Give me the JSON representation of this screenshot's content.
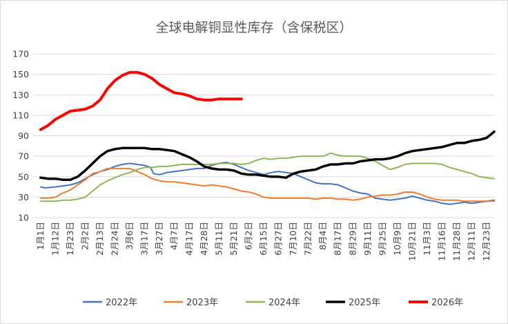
{
  "chart_data": {
    "type": "line",
    "title": "全球电解铜显性库存（含保税区）",
    "xlabel": "",
    "ylabel": "",
    "y_ticks": [
      10,
      30,
      50,
      70,
      90,
      110,
      130,
      150,
      170
    ],
    "ylim": [
      10,
      170
    ],
    "grid": "horizontal",
    "legend_position": "bottom",
    "x_ticks": [
      "1月1日",
      "1月12日",
      "1月23日",
      "2月2日",
      "2月13日",
      "2月24日",
      "3月6日",
      "3月17日",
      "3月27日",
      "4月7日",
      "4月17日",
      "4月28日",
      "5月11日",
      "5月21日",
      "6月2日",
      "6月15日",
      "6月27日",
      "7月10日",
      "7月22日",
      "8月4日",
      "8月17日",
      "8月29日",
      "9月11日",
      "9月25日",
      "10月9日",
      "10月21日",
      "11月3日",
      "11月16日",
      "11月28日",
      "12月11日",
      "12月23日"
    ],
    "series": [
      {
        "name": "2022年",
        "color": "#4472c4",
        "width": 2,
        "points": [
          [
            0,
            40
          ],
          [
            0.3,
            39
          ],
          [
            1,
            40
          ],
          [
            2,
            42
          ],
          [
            2.5,
            44
          ],
          [
            3,
            48
          ],
          [
            3.5,
            52
          ],
          [
            4,
            55
          ],
          [
            4.5,
            57
          ],
          [
            5,
            60
          ],
          [
            5.5,
            62
          ],
          [
            6,
            63
          ],
          [
            6.5,
            62
          ],
          [
            7,
            61
          ],
          [
            7.4,
            59
          ],
          [
            7.6,
            53
          ],
          [
            8,
            52
          ],
          [
            8.5,
            54
          ],
          [
            9,
            55
          ],
          [
            9.5,
            56
          ],
          [
            10,
            57
          ],
          [
            10.5,
            58
          ],
          [
            11,
            58
          ],
          [
            11.5,
            61
          ],
          [
            12,
            63
          ],
          [
            12.5,
            64
          ],
          [
            13,
            62
          ],
          [
            13.5,
            59
          ],
          [
            14,
            56
          ],
          [
            14.5,
            54
          ],
          [
            15,
            52
          ],
          [
            15.5,
            54
          ],
          [
            16,
            55
          ],
          [
            16.5,
            54
          ],
          [
            17,
            53
          ],
          [
            17.5,
            50
          ],
          [
            18,
            47
          ],
          [
            18.5,
            44
          ],
          [
            19,
            43
          ],
          [
            19.5,
            43
          ],
          [
            20,
            42
          ],
          [
            20.5,
            39
          ],
          [
            21,
            36
          ],
          [
            21.5,
            34
          ],
          [
            22,
            33
          ],
          [
            22.5,
            29
          ],
          [
            23,
            28
          ],
          [
            23.5,
            27
          ],
          [
            24,
            28
          ],
          [
            24.5,
            29
          ],
          [
            25,
            31
          ],
          [
            25.5,
            29
          ],
          [
            26,
            27
          ],
          [
            26.5,
            26
          ],
          [
            27,
            24
          ],
          [
            27.5,
            23
          ],
          [
            28,
            24
          ],
          [
            28.5,
            25
          ],
          [
            29,
            24
          ],
          [
            29.5,
            25
          ],
          [
            30,
            26
          ],
          [
            30.5,
            27
          ]
        ]
      },
      {
        "name": "2023年",
        "color": "#ed7d31",
        "width": 2,
        "points": [
          [
            0,
            29
          ],
          [
            0.5,
            29
          ],
          [
            1,
            30
          ],
          [
            1.5,
            34
          ],
          [
            2,
            37
          ],
          [
            2.5,
            42
          ],
          [
            3,
            47
          ],
          [
            3.5,
            53
          ],
          [
            4,
            55
          ],
          [
            4.5,
            58
          ],
          [
            5,
            58
          ],
          [
            5.5,
            58
          ],
          [
            6,
            58
          ],
          [
            6.5,
            55
          ],
          [
            7,
            52
          ],
          [
            7.5,
            48
          ],
          [
            8,
            46
          ],
          [
            8.5,
            45
          ],
          [
            9,
            45
          ],
          [
            9.5,
            44
          ],
          [
            10,
            43
          ],
          [
            10.5,
            42
          ],
          [
            11,
            41
          ],
          [
            11.5,
            42
          ],
          [
            12,
            41
          ],
          [
            12.5,
            40
          ],
          [
            13,
            38
          ],
          [
            13.5,
            36
          ],
          [
            14,
            35
          ],
          [
            14.5,
            33
          ],
          [
            15,
            30
          ],
          [
            15.5,
            29
          ],
          [
            16,
            29
          ],
          [
            16.5,
            29
          ],
          [
            17,
            29
          ],
          [
            17.5,
            29
          ],
          [
            18,
            29
          ],
          [
            18.5,
            28
          ],
          [
            19,
            29
          ],
          [
            19.5,
            29
          ],
          [
            20,
            28
          ],
          [
            20.5,
            28
          ],
          [
            21,
            27
          ],
          [
            21.5,
            28
          ],
          [
            22,
            30
          ],
          [
            22.5,
            31
          ],
          [
            23,
            32
          ],
          [
            23.5,
            32
          ],
          [
            24,
            33
          ],
          [
            24.5,
            35
          ],
          [
            25,
            35
          ],
          [
            25.5,
            33
          ],
          [
            26,
            30
          ],
          [
            26.5,
            28
          ],
          [
            27,
            27
          ],
          [
            27.5,
            27
          ],
          [
            28,
            27
          ],
          [
            28.5,
            26
          ],
          [
            29,
            26
          ],
          [
            29.5,
            26
          ],
          [
            30,
            26
          ],
          [
            30.5,
            26
          ]
        ]
      },
      {
        "name": "2024年",
        "color": "#8fb656",
        "width": 2,
        "points": [
          [
            0,
            26
          ],
          [
            0.5,
            26
          ],
          [
            1,
            26
          ],
          [
            1.5,
            27
          ],
          [
            2,
            27
          ],
          [
            2.5,
            28
          ],
          [
            3,
            30
          ],
          [
            3.5,
            36
          ],
          [
            4,
            42
          ],
          [
            4.5,
            46
          ],
          [
            5,
            49
          ],
          [
            5.5,
            52
          ],
          [
            6,
            54
          ],
          [
            6.5,
            57
          ],
          [
            7,
            59
          ],
          [
            7.5,
            59
          ],
          [
            8,
            60
          ],
          [
            8.5,
            60
          ],
          [
            9,
            61
          ],
          [
            9.5,
            62
          ],
          [
            10,
            62
          ],
          [
            10.5,
            62
          ],
          [
            11,
            62
          ],
          [
            11.5,
            62
          ],
          [
            12,
            63
          ],
          [
            12.5,
            63
          ],
          [
            13,
            63
          ],
          [
            13.5,
            62
          ],
          [
            14,
            63
          ],
          [
            14.5,
            66
          ],
          [
            15,
            68
          ],
          [
            15.5,
            67
          ],
          [
            16,
            68
          ],
          [
            16.5,
            68
          ],
          [
            17,
            69
          ],
          [
            17.5,
            70
          ],
          [
            18,
            70
          ],
          [
            18.5,
            70
          ],
          [
            19,
            70
          ],
          [
            19.5,
            73
          ],
          [
            20,
            71
          ],
          [
            20.5,
            70
          ],
          [
            21,
            70
          ],
          [
            21.5,
            70
          ],
          [
            22,
            68
          ],
          [
            22.5,
            65
          ],
          [
            23,
            61
          ],
          [
            23.5,
            57
          ],
          [
            24,
            59
          ],
          [
            24.5,
            62
          ],
          [
            25,
            63
          ],
          [
            25.5,
            63
          ],
          [
            26,
            63
          ],
          [
            26.5,
            63
          ],
          [
            27,
            62
          ],
          [
            27.5,
            59
          ],
          [
            28,
            57
          ],
          [
            28.5,
            55
          ],
          [
            29,
            53
          ],
          [
            29.5,
            50
          ],
          [
            30,
            49
          ],
          [
            30.5,
            48
          ]
        ]
      },
      {
        "name": "2025年",
        "color": "#000000",
        "width": 3.5,
        "points": [
          [
            0,
            49
          ],
          [
            0.5,
            48
          ],
          [
            1,
            48
          ],
          [
            1.5,
            47
          ],
          [
            2,
            47
          ],
          [
            2.5,
            50
          ],
          [
            3,
            56
          ],
          [
            3.5,
            63
          ],
          [
            4,
            70
          ],
          [
            4.5,
            75
          ],
          [
            5,
            77
          ],
          [
            5.5,
            78
          ],
          [
            6,
            78
          ],
          [
            6.5,
            78
          ],
          [
            7,
            78
          ],
          [
            7.5,
            77
          ],
          [
            8,
            77
          ],
          [
            8.5,
            76
          ],
          [
            9,
            75
          ],
          [
            9.5,
            72
          ],
          [
            10,
            69
          ],
          [
            10.5,
            65
          ],
          [
            11,
            60
          ],
          [
            11.5,
            58
          ],
          [
            12,
            57
          ],
          [
            12.5,
            57
          ],
          [
            13,
            56
          ],
          [
            13.5,
            53
          ],
          [
            14,
            52
          ],
          [
            14.5,
            52
          ],
          [
            15,
            51
          ],
          [
            15.5,
            50
          ],
          [
            16,
            50
          ],
          [
            16.5,
            49
          ],
          [
            17,
            53
          ],
          [
            17.5,
            55
          ],
          [
            18,
            56
          ],
          [
            18.5,
            57
          ],
          [
            19,
            60
          ],
          [
            19.5,
            62
          ],
          [
            20,
            62
          ],
          [
            20.5,
            63
          ],
          [
            21,
            63
          ],
          [
            21.5,
            65
          ],
          [
            22,
            66
          ],
          [
            22.5,
            67
          ],
          [
            23,
            67
          ],
          [
            23.5,
            68
          ],
          [
            24,
            70
          ],
          [
            24.5,
            73
          ],
          [
            25,
            75
          ],
          [
            25.5,
            76
          ],
          [
            26,
            77
          ],
          [
            26.5,
            78
          ],
          [
            27,
            79
          ],
          [
            27.5,
            81
          ],
          [
            28,
            83
          ],
          [
            28.5,
            83
          ],
          [
            29,
            85
          ],
          [
            29.5,
            86
          ],
          [
            30,
            88
          ],
          [
            30.5,
            94
          ]
        ]
      },
      {
        "name": "2026年",
        "color": "#ff0000",
        "width": 4,
        "points": [
          [
            0,
            96
          ],
          [
            0.5,
            100
          ],
          [
            1,
            106
          ],
          [
            1.5,
            110
          ],
          [
            2,
            114
          ],
          [
            2.5,
            115
          ],
          [
            3,
            116
          ],
          [
            3.5,
            119
          ],
          [
            4,
            125
          ],
          [
            4.5,
            136
          ],
          [
            5,
            144
          ],
          [
            5.5,
            149
          ],
          [
            6,
            152
          ],
          [
            6.5,
            152
          ],
          [
            7,
            150
          ],
          [
            7.5,
            146
          ],
          [
            8,
            140
          ],
          [
            8.5,
            136
          ],
          [
            9,
            132
          ],
          [
            9.5,
            131
          ],
          [
            10,
            129
          ],
          [
            10.5,
            126
          ],
          [
            11,
            125
          ],
          [
            11.5,
            125
          ],
          [
            12,
            126
          ],
          [
            12.5,
            126
          ],
          [
            13,
            126
          ],
          [
            13.5,
            126
          ]
        ]
      }
    ]
  }
}
